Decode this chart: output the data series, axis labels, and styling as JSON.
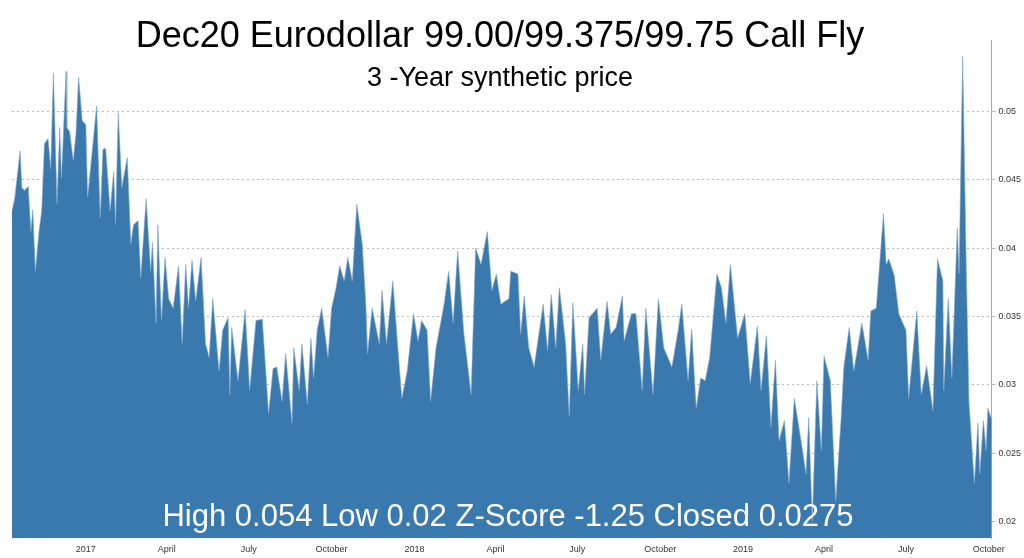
{
  "chart_data": {
    "type": "area",
    "title": "Dec20 Eurodollar 99.00/99.375/99.75 Call Fly",
    "subtitle": "3 -Year synthetic price",
    "annotations": [
      "High 0.054 Low 0.02 Z-Score -1.25 Closed 0.0275"
    ],
    "color": "#3a79ae",
    "marker": "none",
    "grid": "y",
    "xlim": [
      "2016-10-11",
      "2019-10-04"
    ],
    "xticks": [
      {
        "value": "2017-01-01",
        "label": "2017"
      },
      {
        "value": "2017-04-01",
        "label": "April"
      },
      {
        "value": "2017-07-01",
        "label": "July"
      },
      {
        "value": "2017-10-01",
        "label": "October"
      },
      {
        "value": "2018-01-01",
        "label": "2018"
      },
      {
        "value": "2018-04-01",
        "label": "April"
      },
      {
        "value": "2018-07-01",
        "label": "July"
      },
      {
        "value": "2018-10-01",
        "label": "October"
      },
      {
        "value": "2019-01-01",
        "label": "2019"
      },
      {
        "value": "2019-04-01",
        "label": "April"
      },
      {
        "value": "2019-07-01",
        "label": "July"
      },
      {
        "value": "2019-10-01",
        "label": "October"
      }
    ],
    "ylim": [
      0.0188,
      0.0552
    ],
    "yticks": [
      0.02,
      0.025,
      0.03,
      0.035,
      0.04,
      0.045,
      0.05
    ],
    "x": [
      "2016-10-11",
      "2016-10-14",
      "2016-10-20",
      "2016-10-22",
      "2016-10-25",
      "2016-10-29",
      "2016-11-01",
      "2016-11-03",
      "2016-11-06",
      "2016-11-10",
      "2016-11-13",
      "2016-11-16",
      "2016-11-20",
      "2016-11-23",
      "2016-11-26",
      "2016-11-30",
      "2016-12-03",
      "2016-12-05",
      "2016-12-10",
      "2016-12-11",
      "2016-12-14",
      "2016-12-18",
      "2016-12-21",
      "2016-12-24",
      "2016-12-28",
      "2017-01-01",
      "2017-01-03",
      "2017-01-08",
      "2017-01-13",
      "2017-01-17",
      "2017-01-20",
      "2017-01-23",
      "2017-01-28",
      "2017-02-01",
      "2017-02-03",
      "2017-02-06",
      "2017-02-10",
      "2017-02-16",
      "2017-02-20",
      "2017-02-23",
      "2017-02-28",
      "2017-03-03",
      "2017-03-09",
      "2017-03-14",
      "2017-03-16",
      "2017-03-20",
      "2017-03-22",
      "2017-03-26",
      "2017-03-30",
      "2017-04-03",
      "2017-04-08",
      "2017-04-14",
      "2017-04-18",
      "2017-04-22",
      "2017-04-25",
      "2017-04-29",
      "2017-05-03",
      "2017-05-09",
      "2017-05-14",
      "2017-05-18",
      "2017-05-22",
      "2017-05-29",
      "2017-06-02",
      "2017-06-08",
      "2017-06-10",
      "2017-06-12",
      "2017-06-19",
      "2017-06-27",
      "2017-07-02",
      "2017-07-09",
      "2017-07-16",
      "2017-07-23",
      "2017-07-28",
      "2017-08-01",
      "2017-08-07",
      "2017-08-11",
      "2017-08-18",
      "2017-08-20",
      "2017-08-26",
      "2017-08-29",
      "2017-09-04",
      "2017-09-08",
      "2017-09-11",
      "2017-09-15",
      "2017-09-20",
      "2017-09-27",
      "2017-10-01",
      "2017-10-06",
      "2017-10-10",
      "2017-10-15",
      "2017-10-19",
      "2017-10-24",
      "2017-10-29",
      "2017-11-04",
      "2017-11-08",
      "2017-11-10",
      "2017-11-15",
      "2017-11-23",
      "2017-11-26",
      "2017-12-01",
      "2017-12-08",
      "2017-12-13",
      "2017-12-18",
      "2017-12-24",
      "2017-12-31",
      "2018-01-05",
      "2018-01-09",
      "2018-01-15",
      "2018-01-19",
      "2018-01-25",
      "2018-02-03",
      "2018-02-08",
      "2018-02-13",
      "2018-02-18",
      "2018-02-25",
      "2018-03-05",
      "2018-03-10",
      "2018-03-16",
      "2018-03-23",
      "2018-03-28",
      "2018-04-02",
      "2018-04-07",
      "2018-04-16",
      "2018-04-18",
      "2018-04-26",
      "2018-04-29",
      "2018-05-03",
      "2018-05-08",
      "2018-05-14",
      "2018-05-24",
      "2018-05-29",
      "2018-06-02",
      "2018-06-07",
      "2018-06-11",
      "2018-06-18",
      "2018-06-22",
      "2018-06-26",
      "2018-07-02",
      "2018-07-07",
      "2018-07-09",
      "2018-07-14",
      "2018-07-23",
      "2018-07-27",
      "2018-08-03",
      "2018-08-07",
      "2018-08-13",
      "2018-08-20",
      "2018-08-22",
      "2018-08-30",
      "2018-09-04",
      "2018-09-11",
      "2018-09-15",
      "2018-09-23",
      "2018-09-29",
      "2018-10-05",
      "2018-10-14",
      "2018-10-21",
      "2018-10-25",
      "2018-11-01",
      "2018-11-05",
      "2018-11-10",
      "2018-11-15",
      "2018-11-20",
      "2018-11-25",
      "2018-12-03",
      "2018-12-08",
      "2018-12-13",
      "2018-12-18",
      "2018-12-26",
      "2019-01-03",
      "2019-01-09",
      "2019-01-17",
      "2019-01-21",
      "2019-01-27",
      "2019-02-01",
      "2019-02-06",
      "2019-02-10",
      "2019-02-16",
      "2019-02-21",
      "2019-02-27",
      "2019-03-06",
      "2019-03-12",
      "2019-03-15",
      "2019-03-19",
      "2019-03-24",
      "2019-03-29",
      "2019-04-01",
      "2019-04-08",
      "2019-04-14",
      "2019-04-20",
      "2019-04-23",
      "2019-04-29",
      "2019-05-04",
      "2019-05-13",
      "2019-05-20",
      "2019-05-23",
      "2019-05-29",
      "2019-06-06",
      "2019-06-09",
      "2019-06-12",
      "2019-06-18",
      "2019-06-23",
      "2019-07-01",
      "2019-07-04",
      "2019-07-13",
      "2019-07-18",
      "2019-07-24",
      "2019-07-31",
      "2019-08-05",
      "2019-08-11",
      "2019-08-12",
      "2019-08-17",
      "2019-08-21",
      "2019-08-27",
      "2019-08-29",
      "2019-09-02",
      "2019-09-06",
      "2019-09-09",
      "2019-09-15",
      "2019-09-19",
      "2019-09-21",
      "2019-09-25",
      "2019-09-28",
      "2019-09-30",
      "2019-10-04"
    ],
    "values": [
      0.0427,
      0.0436,
      0.0471,
      0.0444,
      0.0442,
      0.0445,
      0.0412,
      0.0428,
      0.0383,
      0.0412,
      0.0427,
      0.0476,
      0.048,
      0.0458,
      0.0528,
      0.0432,
      0.0488,
      0.0451,
      0.0529,
      0.0488,
      0.0485,
      0.0464,
      0.0483,
      0.0525,
      0.0493,
      0.049,
      0.0437,
      0.047,
      0.0504,
      0.0422,
      0.0472,
      0.0473,
      0.0427,
      0.0456,
      0.0417,
      0.0499,
      0.0444,
      0.0466,
      0.0403,
      0.0417,
      0.042,
      0.0378,
      0.0436,
      0.0383,
      0.0404,
      0.0345,
      0.0417,
      0.0347,
      0.0393,
      0.0363,
      0.0356,
      0.0387,
      0.033,
      0.0388,
      0.0356,
      0.0391,
      0.0361,
      0.0393,
      0.033,
      0.032,
      0.0363,
      0.031,
      0.034,
      0.0349,
      0.0293,
      0.0342,
      0.0303,
      0.0355,
      0.0296,
      0.0347,
      0.0348,
      0.0279,
      0.0312,
      0.0313,
      0.0288,
      0.0323,
      0.0272,
      0.0327,
      0.0296,
      0.033,
      0.0286,
      0.0334,
      0.0305,
      0.034,
      0.0356,
      0.032,
      0.0356,
      0.0371,
      0.0387,
      0.0376,
      0.0393,
      0.0376,
      0.0432,
      0.0403,
      0.0359,
      0.0323,
      0.0356,
      0.033,
      0.0369,
      0.033,
      0.0376,
      0.0332,
      0.029,
      0.031,
      0.0352,
      0.0332,
      0.0347,
      0.034,
      0.0288,
      0.0327,
      0.0359,
      0.0383,
      0.0345,
      0.0398,
      0.0337,
      0.0293,
      0.04,
      0.0388,
      0.0412,
      0.0369,
      0.0381,
      0.0359,
      0.0363,
      0.0383,
      0.0381,
      0.0337,
      0.0365,
      0.0327,
      0.0313,
      0.0359,
      0.0325,
      0.0366,
      0.0327,
      0.0371,
      0.033,
      0.0277,
      0.036,
      0.0296,
      0.033,
      0.0293,
      0.0349,
      0.0356,
      0.0318,
      0.0361,
      0.0337,
      0.0342,
      0.0365,
      0.0332,
      0.0352,
      0.0352,
      0.0296,
      0.0356,
      0.0293,
      0.0363,
      0.0327,
      0.0313,
      0.034,
      0.0359,
      0.0303,
      0.0341,
      0.0283,
      0.0305,
      0.0303,
      0.032,
      0.0381,
      0.0371,
      0.0345,
      0.0388,
      0.0334,
      0.0352,
      0.0301,
      0.0343,
      0.0296,
      0.0336,
      0.0269,
      0.0318,
      0.0259,
      0.0274,
      0.0228,
      0.029,
      0.0261,
      0.0235,
      0.0276,
      0.02,
      0.0303,
      0.0252,
      0.0321,
      0.0303,
      0.0215,
      0.0276,
      0.0313,
      0.0342,
      0.031,
      0.0345,
      0.0318,
      0.0354,
      0.0356,
      0.0425,
      0.0388,
      0.0392,
      0.038,
      0.0352,
      0.034,
      0.029,
      0.0354,
      0.0293,
      0.0314,
      0.0281,
      0.0392,
      0.0376,
      0.0296,
      0.0363,
      0.0305,
      0.0415,
      0.0381,
      0.054,
      0.0385,
      0.0287,
      0.0228,
      0.0272,
      0.0235,
      0.0274,
      0.0252,
      0.0283,
      0.0275
    ]
  }
}
